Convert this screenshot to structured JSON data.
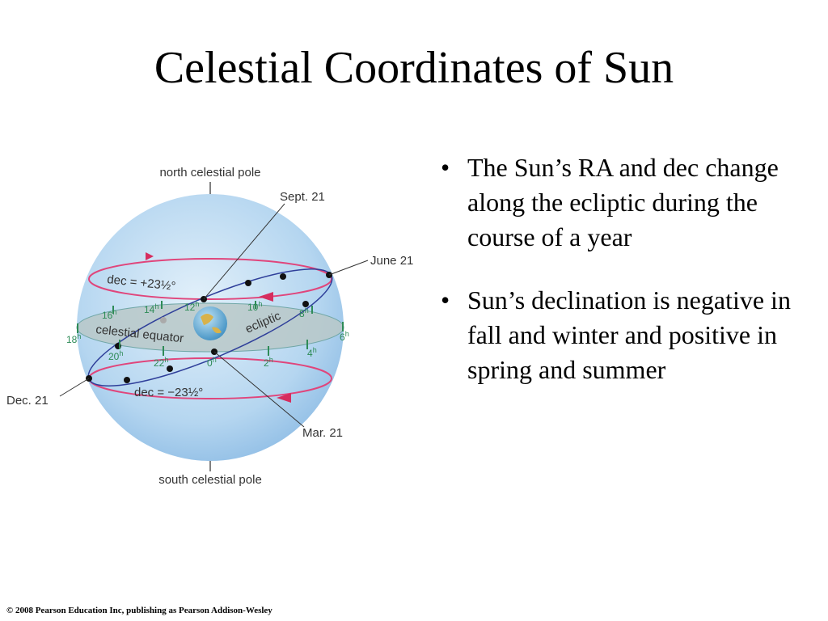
{
  "header": {
    "title": "Celestial Coordinates of Sun"
  },
  "diagram": {
    "north_pole": "north celestial pole",
    "south_pole": "south celestial pole",
    "sept": "Sept. 21",
    "june": "June 21",
    "dec_month": "Dec. 21",
    "mar": "Mar. 21",
    "dec_north": "dec = +23½°",
    "dec_south": "dec = −23½°",
    "equator": "celestial equator",
    "ecliptic": "ecliptic",
    "hours": [
      {
        "number": "18",
        "unit": "h"
      },
      {
        "number": "16",
        "unit": "h"
      },
      {
        "number": "14",
        "unit": "h"
      },
      {
        "number": "12",
        "unit": "h"
      },
      {
        "number": "10",
        "unit": "h"
      },
      {
        "number": "8",
        "unit": "h"
      },
      {
        "number": "6",
        "unit": "h"
      },
      {
        "number": "20",
        "unit": "h"
      },
      {
        "number": "22",
        "unit": "h"
      },
      {
        "number": "0",
        "unit": "h"
      },
      {
        "number": "2",
        "unit": "h"
      },
      {
        "number": "4",
        "unit": "h"
      }
    ]
  },
  "bullets": [
    "The Sun’s RA and dec change along the ecliptic during the course of a year",
    "Sun’s declination is negative in fall and winter and positive in spring and summer"
  ],
  "footer": "© 2008 Pearson Education Inc, publishing as Pearson Addison-Wesley"
}
